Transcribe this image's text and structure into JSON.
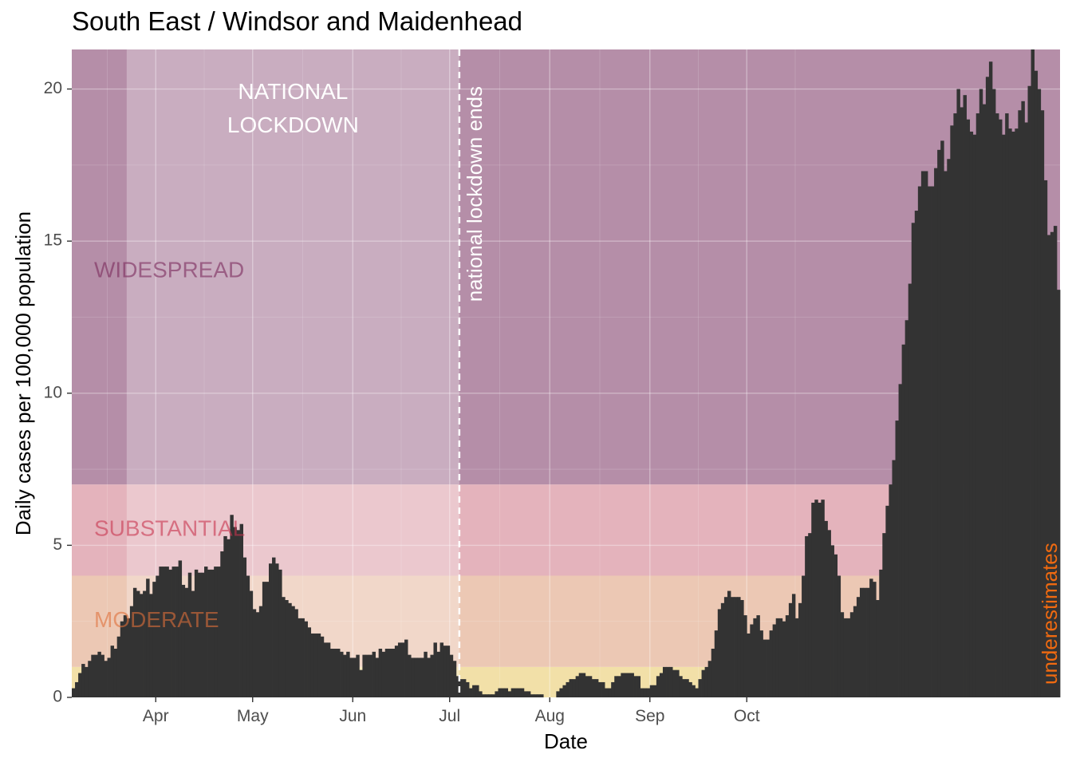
{
  "chart_data": {
    "type": "bar",
    "title": "South East / Windsor and Maidenhead",
    "xlabel": "Date",
    "ylabel": "Daily cases per 100,000 population",
    "x_start": "2020-03-06",
    "ylim": [
      0,
      21.3
    ],
    "yticks": [
      0,
      5,
      10,
      15,
      20
    ],
    "xticks": [
      {
        "date": "2020-04-01",
        "label": "Apr"
      },
      {
        "date": "2020-05-01",
        "label": "May"
      },
      {
        "date": "2020-06-01",
        "label": "Jun"
      },
      {
        "date": "2020-07-01",
        "label": "Jul"
      },
      {
        "date": "2020-08-01",
        "label": "Aug"
      },
      {
        "date": "2020-09-01",
        "label": "Sep"
      },
      {
        "date": "2020-10-01",
        "label": "Oct"
      }
    ],
    "grid": true,
    "bands": [
      {
        "label": "",
        "from": 0,
        "to": 1,
        "color": "#f2e0a8"
      },
      {
        "label": "MODERATE",
        "from": 1,
        "to": 4,
        "color": "#ecc8b4"
      },
      {
        "label": "SUBSTANTIAL",
        "from": 4,
        "to": 7,
        "color": "#e4b3bc"
      },
      {
        "label": "WIDESPREAD",
        "from": 7,
        "to": 21.3,
        "color": "#b58ea8"
      }
    ],
    "band_label_colors": {
      "WIDESPREAD": "#7b2a5c",
      "SUBSTANTIAL": "#c8334f",
      "MODERATE": "#e0703a"
    },
    "lockdown": {
      "start": "2020-03-23",
      "end": "2020-07-04",
      "label_lines": [
        "NATIONAL",
        "LOCKDOWN"
      ]
    },
    "lockdown_end_label": "national lockdown ends",
    "underestimates_label": "underestimates",
    "underestimates_color": "#f06a10",
    "bar_color": "#333333",
    "values": [
      0.3,
      0.5,
      0.8,
      1.1,
      1.0,
      1.2,
      1.4,
      1.4,
      1.5,
      1.4,
      1.2,
      1.3,
      1.7,
      1.6,
      2.0,
      2.5,
      2.7,
      2.6,
      3.0,
      3.6,
      3.5,
      3.4,
      3.5,
      3.9,
      3.4,
      3.8,
      4.0,
      4.3,
      4.3,
      4.3,
      4.2,
      4.3,
      4.3,
      4.5,
      3.7,
      3.6,
      4.1,
      3.5,
      4.2,
      4.1,
      4.1,
      4.3,
      4.2,
      4.2,
      4.3,
      4.3,
      4.8,
      5.3,
      5.2,
      6.0,
      5.6,
      5.5,
      5.7,
      4.6,
      4.0,
      3.5,
      2.9,
      2.8,
      3.0,
      3.8,
      3.8,
      4.4,
      4.6,
      4.4,
      4.2,
      3.3,
      3.2,
      3.1,
      3.0,
      2.9,
      2.6,
      2.6,
      2.5,
      2.3,
      2.1,
      2.1,
      2.1,
      2.0,
      1.8,
      1.8,
      1.6,
      1.6,
      1.6,
      1.5,
      1.4,
      1.5,
      1.3,
      1.3,
      1.4,
      0.9,
      1.4,
      1.4,
      1.4,
      1.5,
      1.3,
      1.6,
      1.5,
      1.6,
      1.6,
      1.6,
      1.7,
      1.8,
      1.8,
      1.9,
      1.4,
      1.3,
      1.3,
      1.3,
      1.3,
      1.5,
      1.3,
      1.4,
      1.8,
      1.5,
      1.8,
      1.7,
      1.7,
      1.4,
      1.2,
      0.7,
      0.6,
      0.6,
      0.5,
      0.3,
      0.4,
      0.4,
      0.2,
      0.1,
      0.1,
      0.1,
      0.1,
      0.2,
      0.3,
      0.3,
      0.3,
      0.2,
      0.3,
      0.3,
      0.3,
      0.3,
      0.2,
      0.2,
      0.1,
      0.1,
      0.1,
      0.1,
      0.0,
      0.0,
      0.0,
      0.0,
      0.2,
      0.3,
      0.4,
      0.5,
      0.6,
      0.6,
      0.7,
      0.8,
      0.8,
      0.7,
      0.7,
      0.6,
      0.6,
      0.5,
      0.5,
      0.3,
      0.3,
      0.5,
      0.7,
      0.7,
      0.8,
      0.8,
      0.8,
      0.8,
      0.7,
      0.7,
      0.3,
      0.3,
      0.3,
      0.4,
      0.4,
      0.7,
      0.8,
      1.0,
      1.0,
      1.0,
      0.9,
      0.9,
      0.7,
      0.6,
      0.6,
      0.5,
      0.4,
      0.3,
      0.6,
      0.9,
      1.0,
      1.2,
      1.6,
      2.2,
      2.9,
      3.1,
      3.3,
      3.5,
      3.3,
      3.3,
      3.3,
      3.2,
      2.7,
      2.1,
      2.4,
      2.6,
      2.7,
      2.2,
      1.9,
      1.9,
      2.2,
      2.4,
      2.6,
      2.6,
      2.5,
      2.7,
      3.1,
      3.4,
      2.6,
      3.1,
      4.0,
      5.3,
      5.4,
      6.4,
      6.5,
      6.4,
      6.5,
      5.8,
      5.5,
      5.0,
      4.7,
      4.0,
      2.8,
      2.6,
      2.6,
      2.8,
      3.0,
      3.3,
      3.6,
      3.6,
      3.6,
      3.9,
      3.8,
      3.2,
      4.2,
      5.4,
      6.3,
      7.0,
      7.8,
      9.1,
      10.3,
      11.6,
      12.4,
      13.6,
      15.6,
      16.0,
      16.8,
      17.3,
      17.3,
      16.8,
      16.8,
      17.4,
      18.0,
      18.3,
      17.3,
      17.7,
      18.8,
      19.2,
      20.0,
      19.4,
      19.8,
      19.0,
      18.6,
      18.5,
      19.2,
      20.0,
      19.5,
      20.4,
      20.9,
      20.0,
      19.2,
      19.0,
      18.5,
      19.2,
      18.7,
      18.6,
      18.7,
      19.3,
      19.6,
      18.9,
      20.1,
      21.5,
      20.6,
      20.0,
      19.3,
      17.0,
      15.2,
      15.3,
      15.5,
      13.4
    ]
  }
}
